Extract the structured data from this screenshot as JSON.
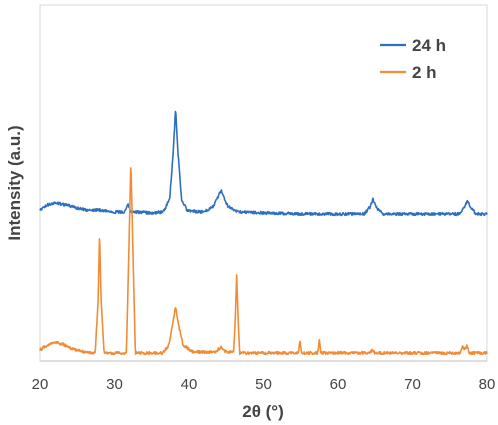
{
  "chart_data": {
    "type": "line",
    "title": "",
    "xlabel": "2θ (°)",
    "ylabel": "Intensity (a.u.)",
    "xlim": [
      20,
      80
    ],
    "xticks": [
      20,
      30,
      40,
      50,
      60,
      70,
      80
    ],
    "y_tick_labels": false,
    "grid": false,
    "legend_position": "top-right",
    "series": [
      {
        "name": "24 h",
        "color": "#2f6fbf",
        "offset": 210,
        "baseline_noise": 1.4,
        "points": [
          [
            20.0,
            210
          ],
          [
            21.0,
            205
          ],
          [
            22.0,
            203
          ],
          [
            23.0,
            204
          ],
          [
            24.0,
            206
          ],
          [
            25.0,
            208
          ],
          [
            26.0,
            210
          ],
          [
            27.0,
            210
          ],
          [
            28.0,
            210
          ],
          [
            29.0,
            211
          ],
          [
            30.0,
            212
          ],
          [
            31.3,
            212
          ],
          [
            31.8,
            204
          ],
          [
            32.2,
            212
          ],
          [
            33.0,
            212
          ],
          [
            35.0,
            213
          ],
          [
            36.5,
            212
          ],
          [
            37.4,
            200
          ],
          [
            37.9,
            150
          ],
          [
            38.2,
            108
          ],
          [
            38.5,
            150
          ],
          [
            39.0,
            200
          ],
          [
            39.8,
            211
          ],
          [
            42.0,
            212
          ],
          [
            43.3,
            206
          ],
          [
            44.3,
            190
          ],
          [
            45.2,
            206
          ],
          [
            46.5,
            212
          ],
          [
            55.0,
            214
          ],
          [
            63.5,
            214
          ],
          [
            64.3,
            207
          ],
          [
            64.7,
            199
          ],
          [
            65.1,
            207
          ],
          [
            66.0,
            214
          ],
          [
            76.3,
            214
          ],
          [
            77.0,
            207
          ],
          [
            77.4,
            201
          ],
          [
            77.8,
            207
          ],
          [
            78.5,
            214
          ],
          [
            80.0,
            214
          ]
        ]
      },
      {
        "name": "2 h",
        "color": "#f28b35",
        "offset": 352,
        "baseline_noise": 1.4,
        "points": [
          [
            20.0,
            350
          ],
          [
            21.0,
            345
          ],
          [
            22.0,
            342
          ],
          [
            23.0,
            344
          ],
          [
            24.0,
            348
          ],
          [
            25.0,
            350
          ],
          [
            26.0,
            352
          ],
          [
            27.4,
            353
          ],
          [
            27.8,
            300
          ],
          [
            28.0,
            233
          ],
          [
            28.2,
            300
          ],
          [
            28.6,
            353
          ],
          [
            31.6,
            353
          ],
          [
            31.9,
            260
          ],
          [
            32.2,
            160
          ],
          [
            32.5,
            260
          ],
          [
            32.8,
            353
          ],
          [
            36.5,
            353
          ],
          [
            37.3,
            345
          ],
          [
            37.8,
            325
          ],
          [
            38.2,
            306
          ],
          [
            38.6,
            325
          ],
          [
            39.2,
            345
          ],
          [
            40.5,
            352
          ],
          [
            43.5,
            352
          ],
          [
            44.3,
            347
          ],
          [
            45.0,
            352
          ],
          [
            46.0,
            352
          ],
          [
            46.2,
            320
          ],
          [
            46.4,
            275
          ],
          [
            46.6,
            320
          ],
          [
            46.8,
            353
          ],
          [
            54.7,
            353
          ],
          [
            54.9,
            339
          ],
          [
            55.1,
            353
          ],
          [
            57.3,
            353
          ],
          [
            57.5,
            339
          ],
          [
            57.7,
            353
          ],
          [
            64.3,
            353
          ],
          [
            64.6,
            349
          ],
          [
            64.9,
            353
          ],
          [
            76.4,
            353
          ],
          [
            76.7,
            346
          ],
          [
            77.0,
            349
          ],
          [
            77.3,
            346
          ],
          [
            77.6,
            353
          ],
          [
            80.0,
            353
          ]
        ]
      }
    ]
  }
}
